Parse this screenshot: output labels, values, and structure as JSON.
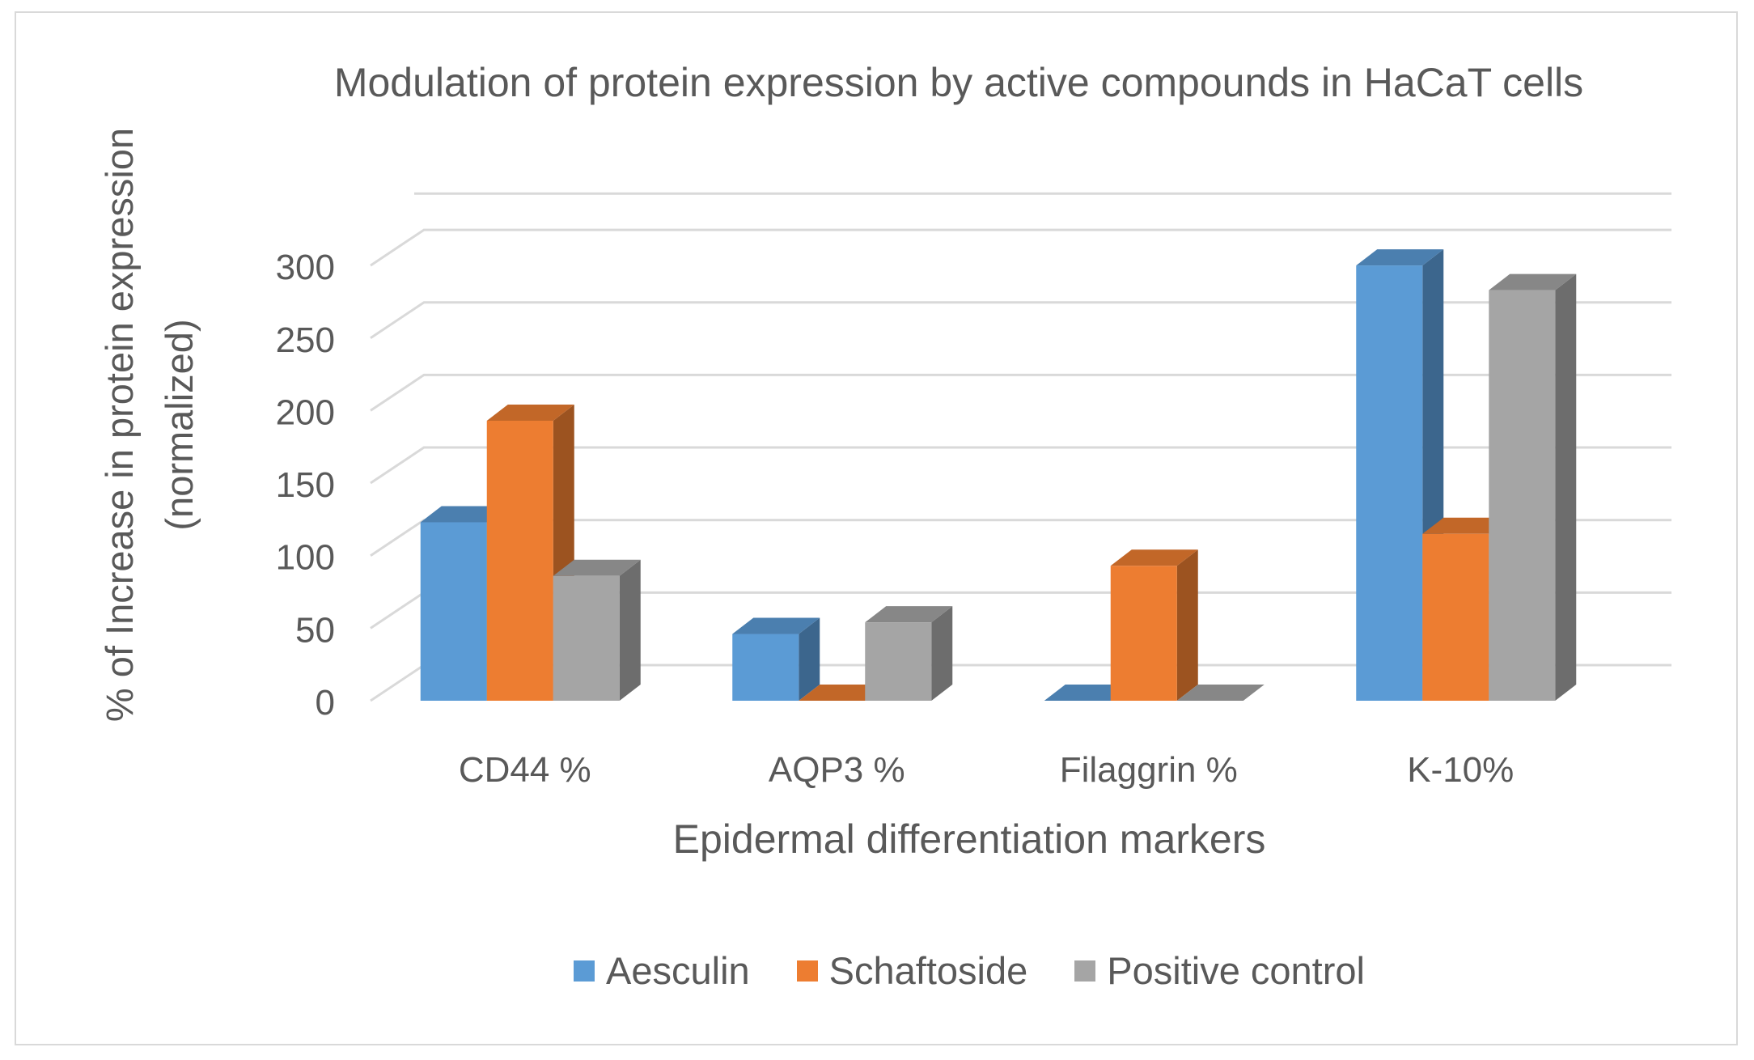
{
  "chart_data": {
    "type": "bar",
    "title": "Modulation of protein expression by active compounds in HaCaT cells",
    "xlabel": "Epidermal differentiation markers",
    "ylabel": "% of Increase in protein expression (normalized)",
    "categories": [
      "CD44 %",
      "AQP3 %",
      "Filaggrin %",
      "K-10%"
    ],
    "ylim": [
      0,
      325
    ],
    "yticks": [
      0,
      50,
      100,
      150,
      200,
      250,
      300
    ],
    "grid": true,
    "legend_position": "bottom",
    "series": [
      {
        "name": "Aesculin",
        "color": "#5b9bd5",
        "values": [
          123,
          46,
          0,
          300
        ]
      },
      {
        "name": "Schaftoside",
        "color": "#ed7d31",
        "values": [
          193,
          0,
          93,
          115
        ]
      },
      {
        "name": "Positive control",
        "color": "#a5a5a5",
        "values": [
          86,
          54,
          0,
          283
        ]
      }
    ]
  }
}
